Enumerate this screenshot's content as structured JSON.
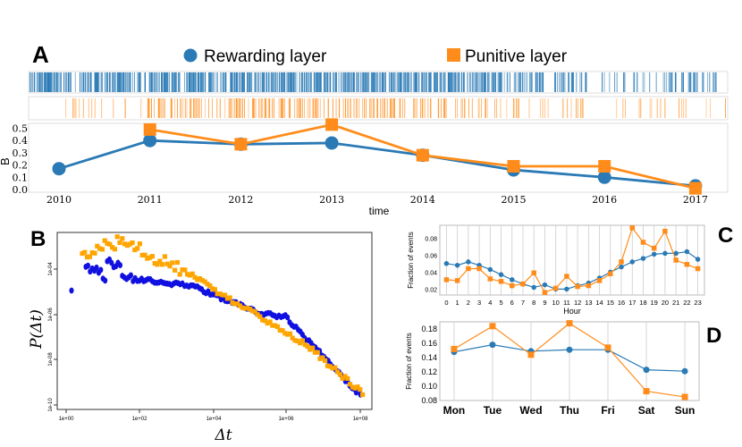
{
  "colors": {
    "blue": "#2a7ab5",
    "orange": "#ff8c1a",
    "dot_blue": "#1010e0",
    "dot_orange": "#ffa500",
    "grid": "#cccccc"
  },
  "panel_labels": {
    "a": "A",
    "b": "B",
    "c": "C",
    "d": "D"
  },
  "chart_data": [
    {
      "panel": "A",
      "type": "line",
      "legend": [
        "Rewarding layer",
        "Punitive layer"
      ],
      "legend_position": "top",
      "xlabel": "time",
      "ylabel": "B",
      "categories": [
        "2010",
        "2011",
        "2012",
        "2013",
        "2014",
        "2015",
        "2016",
        "2017"
      ],
      "yticks": [
        "0.0",
        "0.1",
        "0.2",
        "0.3",
        "0.4",
        "0.5"
      ],
      "ylim": [
        0,
        0.55
      ],
      "series": [
        {
          "name": "Rewarding layer",
          "values": [
            0.17,
            0.4,
            0.37,
            0.38,
            0.28,
            0.16,
            0.1,
            0.03
          ]
        },
        {
          "name": "Punitive layer",
          "values": [
            null,
            0.49,
            0.37,
            0.53,
            0.28,
            0.19,
            0.19,
            0.01
          ]
        }
      ]
    },
    {
      "panel": "B",
      "type": "scatter",
      "xlabel": "Δt",
      "ylabel": "P(Δt)",
      "xscale": "log",
      "yscale": "log",
      "xticks": [
        "1e+00",
        "1e+02",
        "1e+04",
        "1e+06",
        "1e+08"
      ],
      "yticks": [
        "1e-04",
        "1e-06",
        "1e-08",
        "1e-10"
      ]
    },
    {
      "panel": "C",
      "type": "line",
      "xlabel": "Hour",
      "ylabel": "Fraction of events",
      "categories": [
        "0",
        "1",
        "2",
        "3",
        "4",
        "5",
        "6",
        "7",
        "8",
        "9",
        "10",
        "11",
        "12",
        "13",
        "14",
        "15",
        "16",
        "17",
        "18",
        "19",
        "20",
        "21",
        "22",
        "23"
      ],
      "yticks": [
        "0.02",
        "0.04",
        "0.06",
        "0.08"
      ],
      "ylim": [
        0.013,
        0.095
      ],
      "grid": true,
      "series": [
        {
          "values": [
            0.05,
            0.048,
            0.052,
            0.048,
            0.043,
            0.037,
            0.031,
            0.026,
            0.022,
            0.025,
            0.02,
            0.02,
            0.024,
            0.027,
            0.033,
            0.04,
            0.046,
            0.052,
            0.056,
            0.061,
            0.062,
            0.062,
            0.064,
            0.055
          ]
        },
        {
          "values": [
            0.031,
            0.03,
            0.044,
            0.044,
            0.032,
            0.029,
            0.024,
            0.026,
            0.039,
            0.016,
            0.021,
            0.035,
            0.023,
            0.024,
            0.03,
            0.038,
            0.052,
            0.092,
            0.075,
            0.068,
            0.088,
            0.054,
            0.049,
            0.044
          ]
        }
      ]
    },
    {
      "panel": "D",
      "type": "line",
      "ylabel": "Fraction of events",
      "categories": [
        "Mon",
        "Tue",
        "Wed",
        "Thu",
        "Fri",
        "Sat",
        "Sun"
      ],
      "yticks": [
        "0.08",
        "0.10",
        "0.12",
        "0.14",
        "0.16",
        "0.18"
      ],
      "ylim": [
        0.08,
        0.19
      ],
      "grid": true,
      "series": [
        {
          "values": [
            0.148,
            0.158,
            0.149,
            0.151,
            0.151,
            0.123,
            0.121
          ]
        },
        {
          "values": [
            0.152,
            0.184,
            0.144,
            0.188,
            0.154,
            0.093,
            0.085
          ]
        }
      ]
    }
  ]
}
